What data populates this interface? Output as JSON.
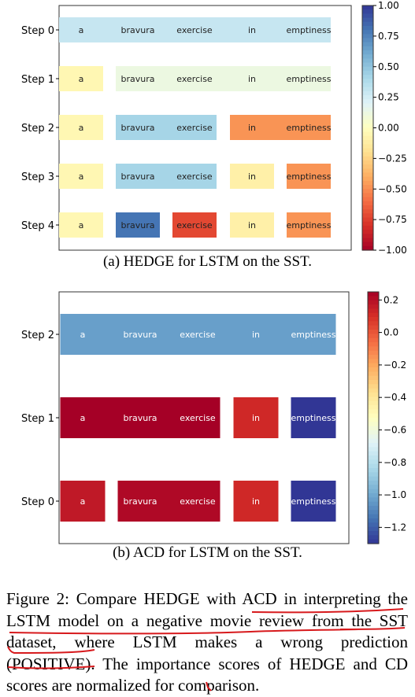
{
  "figure_a": {
    "caption_label": "(a)",
    "caption_method": "HEDGE",
    "caption_rest": "for LSTM on the SST."
  },
  "figure_b": {
    "caption_label": "(b)",
    "caption_rest": "ACD for LSTM on the SST."
  },
  "caption": {
    "prefix": "Figure 2: Compare",
    "method1": "HEDGE",
    "part2": "with ACD in interpreting the LSTM model on a negative movie review from the SST dataset, where LSTM makes a wrong prediction (",
    "prediction": "POSITIVE",
    "part3": "). The importance scores of",
    "method2": "HEDGE",
    "part4": "and CD scores are normalized for comparison."
  },
  "chart_data": [
    {
      "type": "heatmap",
      "words": [
        "a",
        "bravura",
        "exercise",
        "in",
        "emptiness"
      ],
      "y_tick_labels": [
        "Step 0",
        "Step 1",
        "Step 2",
        "Step 3",
        "Step 4"
      ],
      "colorbar_ticks": [
        "1.00",
        "0.75",
        "0.50",
        "0.25",
        "0.00",
        "−0.25",
        "−0.50",
        "−0.75",
        "−1.00"
      ],
      "colorbar_range": [
        -1.0,
        1.0
      ],
      "colormap": "RdYlBu",
      "steps": [
        {
          "label": "Step 0",
          "segments": [
            {
              "words": [
                "a",
                "bravura",
                "exercise",
                "in",
                "emptiness"
              ],
              "value": 0.3
            }
          ]
        },
        {
          "label": "Step 1",
          "segments": [
            {
              "words": [
                "a"
              ],
              "value": -0.05
            },
            {
              "words": [
                "bravura",
                "exercise",
                "in",
                "emptiness"
              ],
              "value": 0.12
            }
          ]
        },
        {
          "label": "Step 2",
          "segments": [
            {
              "words": [
                "a"
              ],
              "value": -0.05
            },
            {
              "words": [
                "bravura",
                "exercise"
              ],
              "value": 0.42
            },
            {
              "words": [
                "in",
                "emptiness"
              ],
              "value": -0.48
            }
          ]
        },
        {
          "label": "Step 3",
          "segments": [
            {
              "words": [
                "a"
              ],
              "value": -0.05
            },
            {
              "words": [
                "bravura",
                "exercise"
              ],
              "value": 0.42
            },
            {
              "words": [
                "in"
              ],
              "value": -0.1
            },
            {
              "words": [
                "emptiness"
              ],
              "value": -0.48
            }
          ]
        },
        {
          "label": "Step 4",
          "segments": [
            {
              "words": [
                "a"
              ],
              "value": -0.05
            },
            {
              "words": [
                "bravura"
              ],
              "value": 0.8
            },
            {
              "words": [
                "exercise"
              ],
              "value": -0.72
            },
            {
              "words": [
                "in"
              ],
              "value": -0.1
            },
            {
              "words": [
                "emptiness"
              ],
              "value": -0.48
            }
          ]
        }
      ]
    },
    {
      "type": "heatmap",
      "words": [
        "a",
        "bravura",
        "exercise",
        "in",
        "emptiness"
      ],
      "y_tick_labels": [
        "Step 2",
        "Step 1",
        "Step 0"
      ],
      "colorbar_ticks": [
        "0.2",
        "0.0",
        "−0.2",
        "−0.4",
        "−0.6",
        "−0.8",
        "−1.0",
        "−1.2"
      ],
      "colorbar_range": [
        -1.3,
        0.25
      ],
      "colormap": "RdYlBu_r",
      "steps": [
        {
          "label": "Step 2",
          "segments": [
            {
              "words": [
                "a",
                "bravura",
                "exercise",
                "in",
                "emptiness"
              ],
              "value": -1.03
            }
          ]
        },
        {
          "label": "Step 1",
          "segments": [
            {
              "words": [
                "a",
                "bravura",
                "exercise"
              ],
              "value": 0.25
            },
            {
              "words": [
                "in"
              ],
              "value": 0.12
            },
            {
              "words": [
                "emptiness"
              ],
              "value": -1.3
            }
          ]
        },
        {
          "label": "Step 0",
          "segments": [
            {
              "words": [
                "a"
              ],
              "value": 0.17
            },
            {
              "words": [
                "bravura",
                "exercise"
              ],
              "value": 0.22
            },
            {
              "words": [
                "in"
              ],
              "value": 0.12
            },
            {
              "words": [
                "emptiness"
              ],
              "value": -1.3
            }
          ]
        }
      ]
    }
  ]
}
